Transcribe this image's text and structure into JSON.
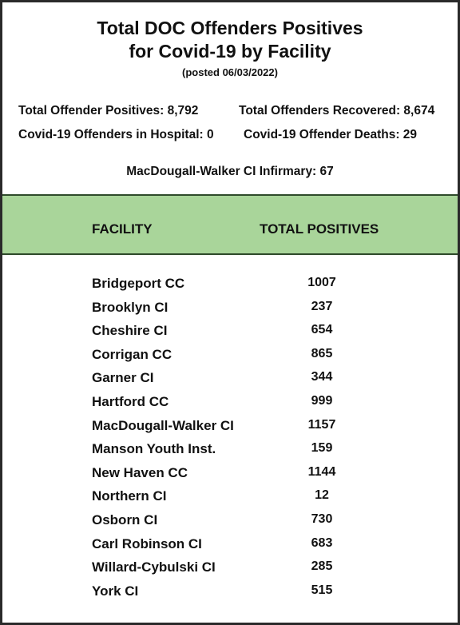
{
  "title_line1": "Total  DOC Offenders Positives",
  "title_line2": "for Covid-19 by Facility",
  "posted": "(posted 06/03/2022)",
  "stats": {
    "positives": "Total Offender Positives: 8,792",
    "recovered": "Total Offenders Recovered: 8,674",
    "hospital": "Covid-19 Offenders in  Hospital: 0",
    "deaths": "Covid-19 Offender Deaths: 29",
    "infirmary": "MacDougall-Walker CI Infirmary:  67"
  },
  "table": {
    "header_facility": "FACILITY",
    "header_total": "TOTAL POSITIVES",
    "rows": [
      {
        "facility": "Bridgeport CC",
        "total": "1007"
      },
      {
        "facility": "Brooklyn CI",
        "total": "237"
      },
      {
        "facility": "Cheshire CI",
        "total": "654"
      },
      {
        "facility": "Corrigan CC",
        "total": "865"
      },
      {
        "facility": "Garner CI",
        "total": "344"
      },
      {
        "facility": "Hartford CC",
        "total": "999"
      },
      {
        "facility": "MacDougall-Walker CI",
        "total": "1157"
      },
      {
        "facility": "Manson Youth Inst.",
        "total": "159"
      },
      {
        "facility": "New Haven CC",
        "total": "1144"
      },
      {
        "facility": "Northern CI",
        "total": "12"
      },
      {
        "facility": "Osborn CI",
        "total": "730"
      },
      {
        "facility": "Carl Robinson CI",
        "total": "683"
      },
      {
        "facility": "Willard-Cybulski CI",
        "total": "285"
      },
      {
        "facility": "York CI",
        "total": "515"
      }
    ]
  },
  "colors": {
    "header_band": "#a9d59a",
    "border": "#2a2a2a"
  }
}
